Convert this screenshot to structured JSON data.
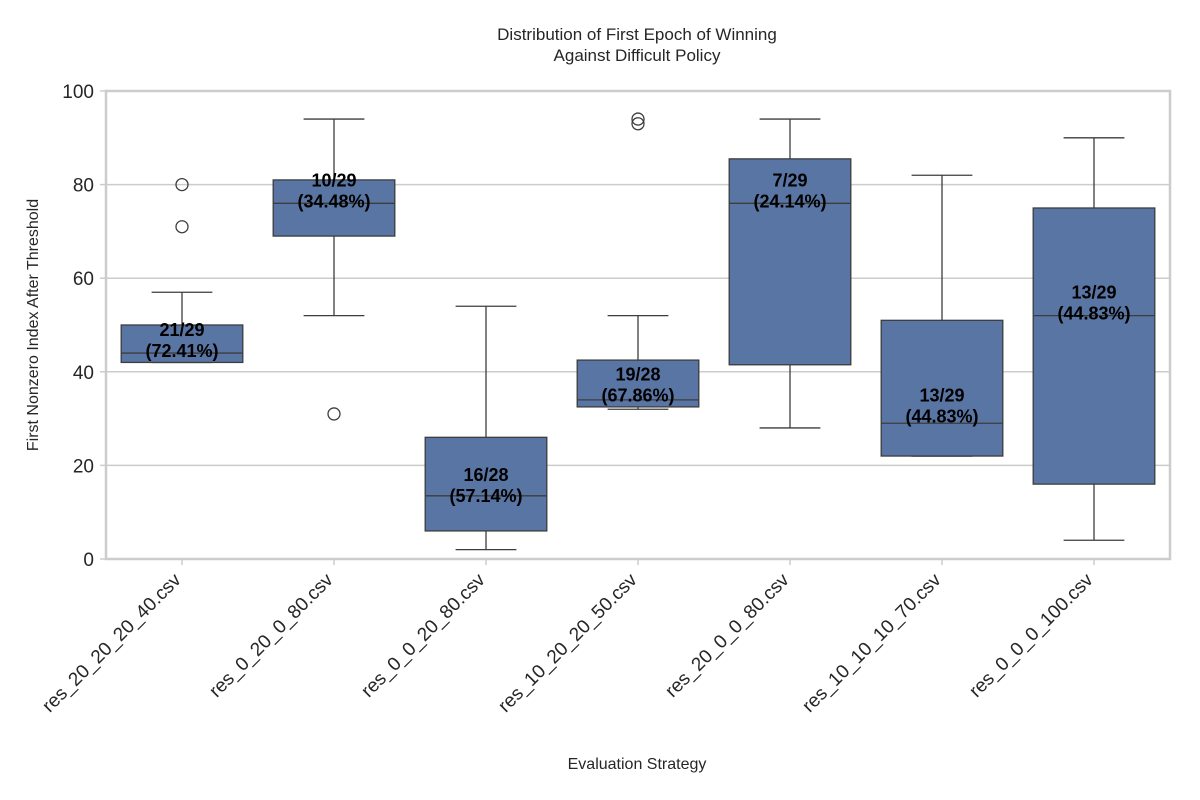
{
  "chart_data": {
    "type": "box",
    "title_lines": [
      "Distribution of First Epoch of Winning",
      "Against Difficult Policy"
    ],
    "xlabel": "Evaluation Strategy",
    "ylabel": "First Nonzero Index After Threshold",
    "ylim": [
      0,
      100
    ],
    "yticks": [
      0,
      20,
      40,
      60,
      80,
      100
    ],
    "grid": "horizontal",
    "box_color": "#5975a4",
    "line_color": "#3d3d3d",
    "categories": [
      "res_20_20_20_40.csv",
      "res_0_20_0_80.csv",
      "res_0_0_20_80.csv",
      "res_10_20_20_50.csv",
      "res_20_0_0_80.csv",
      "res_10_10_10_70.csv",
      "res_0_0_0_100.csv"
    ],
    "boxes": [
      {
        "whisker_low": 42,
        "q1": 42,
        "median": 44,
        "q3": 50,
        "whisker_high": 57,
        "outliers": [
          71,
          80
        ],
        "annotation_lines": [
          "21/29",
          "(72.41%)"
        ],
        "annotation_y": 47
      },
      {
        "whisker_low": 52,
        "q1": 69,
        "median": 76,
        "q3": 81,
        "whisker_high": 94,
        "outliers": [
          31
        ],
        "annotation_lines": [
          "10/29",
          "(34.48%)"
        ],
        "annotation_y": 79
      },
      {
        "whisker_low": 2,
        "q1": 6,
        "median": 13.5,
        "q3": 26,
        "whisker_high": 54,
        "outliers": [],
        "annotation_lines": [
          "16/28",
          "(57.14%)"
        ],
        "annotation_y": 16
      },
      {
        "whisker_low": 32,
        "q1": 32.5,
        "median": 34,
        "q3": 42.5,
        "whisker_high": 52,
        "outliers": [
          93,
          94
        ],
        "annotation_lines": [
          "19/28",
          "(67.86%)"
        ],
        "annotation_y": 37.5
      },
      {
        "whisker_low": 28,
        "q1": 41.5,
        "median": 76,
        "q3": 85.5,
        "whisker_high": 94,
        "outliers": [],
        "annotation_lines": [
          "7/29",
          "(24.14%)"
        ],
        "annotation_y": 79
      },
      {
        "whisker_low": 22,
        "q1": 22,
        "median": 29,
        "q3": 51,
        "whisker_high": 82,
        "outliers": [],
        "annotation_lines": [
          "13/29",
          "(44.83%)"
        ],
        "annotation_y": 33
      },
      {
        "whisker_low": 4,
        "q1": 16,
        "median": 52,
        "q3": 75,
        "whisker_high": 90,
        "outliers": [],
        "annotation_lines": [
          "13/29",
          "(44.83%)"
        ],
        "annotation_y": 55
      }
    ]
  }
}
